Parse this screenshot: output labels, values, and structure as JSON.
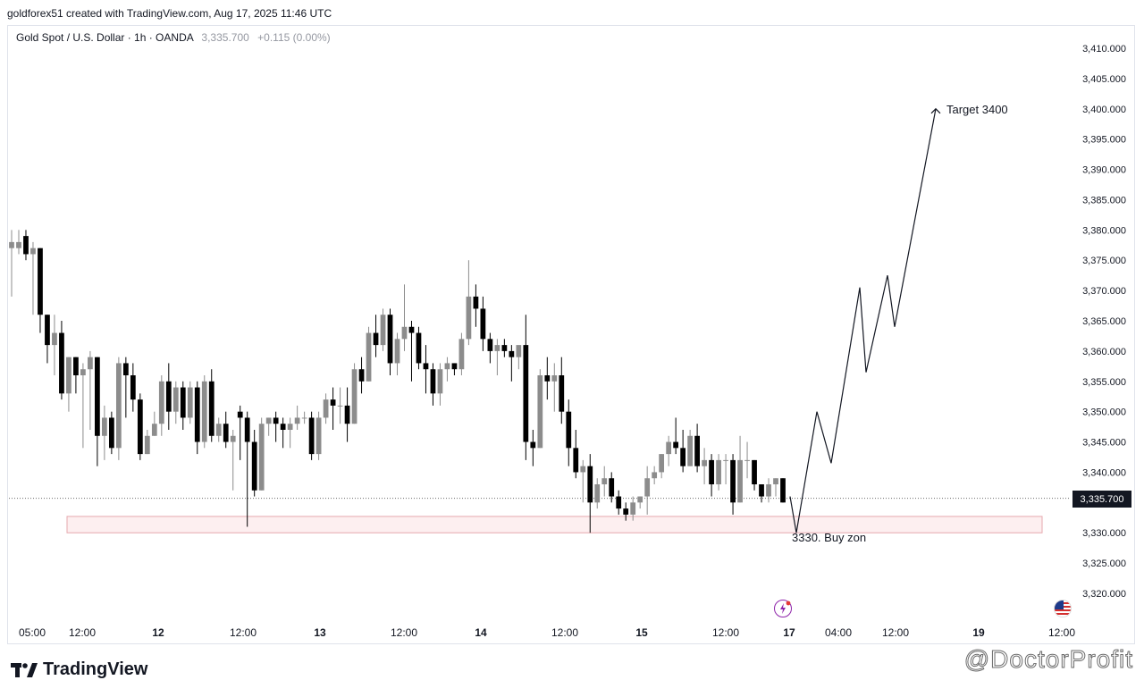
{
  "header": {
    "credit": "goldforex51 created with TradingView.com, Aug 17, 2025 11:46 UTC"
  },
  "legend": {
    "symbol": "Gold Spot / U.S. Dollar · 1h · OANDA",
    "price": "3,335.700",
    "change": "+0.115 (0.00%)"
  },
  "price_tag": "3,335.700",
  "footer": {
    "brand": "TradingView",
    "watermark": "@DoctorProfit"
  },
  "colors": {
    "up": "#8c8c8c",
    "down": "#000000",
    "zone_fill": "#fdeff0",
    "zone_border": "#e6a8ae",
    "line": "#131722"
  },
  "chart_data": {
    "type": "candlestick",
    "symbol": "Gold Spot / U.S. Dollar",
    "interval": "1h",
    "exchange": "OANDA",
    "ylim": [
      3316,
      3416
    ],
    "y_ticks": [
      3410,
      3405,
      3400,
      3395,
      3390,
      3385,
      3380,
      3375,
      3370,
      3365,
      3360,
      3355,
      3350,
      3345,
      3340,
      3335,
      3330,
      3325,
      3320
    ],
    "y_tick_labels": [
      "3,410.000",
      "3,405.000",
      "3,400.000",
      "3,395.000",
      "3,390.000",
      "3,385.000",
      "3,380.000",
      "3,375.000",
      "3,370.000",
      "3,365.000",
      "3,360.000",
      "3,355.000",
      "3,350.000",
      "3,345.000",
      "3,340.000",
      "3,335.000",
      "3,330.000",
      "3,325.000",
      "3,320.000"
    ],
    "x_ticks": [
      "05:00",
      "12:00",
      "12",
      "12:00",
      "13",
      "12:00",
      "14",
      "12:00",
      "15",
      "12:00",
      "17",
      "04:00",
      "12:00",
      "19",
      "12:00"
    ],
    "x_tick_bold": [
      false,
      false,
      true,
      false,
      true,
      false,
      true,
      false,
      true,
      false,
      true,
      false,
      false,
      true,
      false
    ],
    "current_price": 3335.7,
    "candles": [
      {
        "o": 3377,
        "h": 3380,
        "l": 3369,
        "c": 3378
      },
      {
        "o": 3377,
        "h": 3380,
        "l": 3376,
        "c": 3378
      },
      {
        "o": 3379,
        "h": 3380,
        "l": 3375,
        "c": 3376
      },
      {
        "o": 3376,
        "h": 3378,
        "l": 3366,
        "c": 3377
      },
      {
        "o": 3377,
        "h": 3377,
        "l": 3363,
        "c": 3366
      },
      {
        "o": 3366,
        "h": 3366,
        "l": 3358,
        "c": 3361
      },
      {
        "o": 3361,
        "h": 3366,
        "l": 3356,
        "c": 3363
      },
      {
        "o": 3363,
        "h": 3365,
        "l": 3352,
        "c": 3353
      },
      {
        "o": 3353,
        "h": 3359,
        "l": 3350,
        "c": 3359
      },
      {
        "o": 3359,
        "h": 3359,
        "l": 3353,
        "c": 3356
      },
      {
        "o": 3356,
        "h": 3358,
        "l": 3344,
        "c": 3357
      },
      {
        "o": 3357,
        "h": 3360,
        "l": 3347,
        "c": 3359
      },
      {
        "o": 3359,
        "h": 3359,
        "l": 3341,
        "c": 3346
      },
      {
        "o": 3346,
        "h": 3351,
        "l": 3342,
        "c": 3349
      },
      {
        "o": 3349,
        "h": 3350,
        "l": 3343,
        "c": 3344
      },
      {
        "o": 3344,
        "h": 3359,
        "l": 3342,
        "c": 3358
      },
      {
        "o": 3358,
        "h": 3359,
        "l": 3349,
        "c": 3356
      },
      {
        "o": 3356,
        "h": 3358,
        "l": 3350,
        "c": 3352
      },
      {
        "o": 3352,
        "h": 3353,
        "l": 3342,
        "c": 3343
      },
      {
        "o": 3343,
        "h": 3347,
        "l": 3343,
        "c": 3346
      },
      {
        "o": 3346,
        "h": 3350,
        "l": 3346,
        "c": 3348
      },
      {
        "o": 3348,
        "h": 3356,
        "l": 3346,
        "c": 3355
      },
      {
        "o": 3355,
        "h": 3358,
        "l": 3347,
        "c": 3350
      },
      {
        "o": 3350,
        "h": 3355,
        "l": 3348,
        "c": 3354
      },
      {
        "o": 3354,
        "h": 3355,
        "l": 3347,
        "c": 3349
      },
      {
        "o": 3349,
        "h": 3355,
        "l": 3348,
        "c": 3354
      },
      {
        "o": 3354,
        "h": 3355,
        "l": 3343,
        "c": 3345
      },
      {
        "o": 3345,
        "h": 3356,
        "l": 3344,
        "c": 3355
      },
      {
        "o": 3355,
        "h": 3357,
        "l": 3345,
        "c": 3346
      },
      {
        "o": 3346,
        "h": 3349,
        "l": 3345,
        "c": 3348
      },
      {
        "o": 3348,
        "h": 3350,
        "l": 3344,
        "c": 3345
      },
      {
        "o": 3345,
        "h": 3347,
        "l": 3337,
        "c": 3346
      },
      {
        "o": 3350,
        "h": 3351,
        "l": 3342,
        "c": 3349
      },
      {
        "o": 3349,
        "h": 3350,
        "l": 3331,
        "c": 3345
      },
      {
        "o": 3345,
        "h": 3347,
        "l": 3336,
        "c": 3337
      },
      {
        "o": 3337,
        "h": 3349,
        "l": 3337,
        "c": 3348
      },
      {
        "o": 3348,
        "h": 3349,
        "l": 3346,
        "c": 3349
      },
      {
        "o": 3349,
        "h": 3350,
        "l": 3345,
        "c": 3348
      },
      {
        "o": 3348,
        "h": 3349,
        "l": 3344,
        "c": 3347
      },
      {
        "o": 3347,
        "h": 3349,
        "l": 3344,
        "c": 3348
      },
      {
        "o": 3348,
        "h": 3351,
        "l": 3347,
        "c": 3349
      },
      {
        "o": 3349,
        "h": 3350,
        "l": 3348,
        "c": 3349
      },
      {
        "o": 3349,
        "h": 3350,
        "l": 3342,
        "c": 3343
      },
      {
        "o": 3343,
        "h": 3350,
        "l": 3342,
        "c": 3349
      },
      {
        "o": 3349,
        "h": 3353,
        "l": 3348,
        "c": 3352
      },
      {
        "o": 3352,
        "h": 3354,
        "l": 3347,
        "c": 3351
      },
      {
        "o": 3351,
        "h": 3354,
        "l": 3348,
        "c": 3351
      },
      {
        "o": 3351,
        "h": 3354,
        "l": 3345,
        "c": 3348
      },
      {
        "o": 3348,
        "h": 3358,
        "l": 3348,
        "c": 3357
      },
      {
        "o": 3357,
        "h": 3359,
        "l": 3353,
        "c": 3355
      },
      {
        "o": 3355,
        "h": 3364,
        "l": 3355,
        "c": 3363
      },
      {
        "o": 3363,
        "h": 3366,
        "l": 3359,
        "c": 3361
      },
      {
        "o": 3361,
        "h": 3367,
        "l": 3360,
        "c": 3366
      },
      {
        "o": 3366,
        "h": 3367,
        "l": 3356,
        "c": 3358
      },
      {
        "o": 3358,
        "h": 3363,
        "l": 3356,
        "c": 3362
      },
      {
        "o": 3362,
        "h": 3371,
        "l": 3360,
        "c": 3364
      },
      {
        "o": 3364,
        "h": 3365,
        "l": 3355,
        "c": 3363
      },
      {
        "o": 3363,
        "h": 3364,
        "l": 3357,
        "c": 3358
      },
      {
        "o": 3358,
        "h": 3361,
        "l": 3353,
        "c": 3357
      },
      {
        "o": 3357,
        "h": 3358,
        "l": 3351,
        "c": 3353
      },
      {
        "o": 3353,
        "h": 3358,
        "l": 3351,
        "c": 3357
      },
      {
        "o": 3357,
        "h": 3359,
        "l": 3355,
        "c": 3358
      },
      {
        "o": 3358,
        "h": 3358,
        "l": 3356,
        "c": 3357
      },
      {
        "o": 3357,
        "h": 3363,
        "l": 3356,
        "c": 3362
      },
      {
        "o": 3362,
        "h": 3375,
        "l": 3361,
        "c": 3369
      },
      {
        "o": 3369,
        "h": 3371,
        "l": 3364,
        "c": 3367
      },
      {
        "o": 3367,
        "h": 3369,
        "l": 3360,
        "c": 3362
      },
      {
        "o": 3362,
        "h": 3363,
        "l": 3358,
        "c": 3360
      },
      {
        "o": 3360,
        "h": 3362,
        "l": 3356,
        "c": 3361
      },
      {
        "o": 3361,
        "h": 3362,
        "l": 3359,
        "c": 3360
      },
      {
        "o": 3360,
        "h": 3361,
        "l": 3355,
        "c": 3359
      },
      {
        "o": 3359,
        "h": 3360,
        "l": 3357,
        "c": 3361
      },
      {
        "o": 3361,
        "h": 3366,
        "l": 3342,
        "c": 3345
      },
      {
        "o": 3345,
        "h": 3347,
        "l": 3341,
        "c": 3344
      },
      {
        "o": 3344,
        "h": 3357,
        "l": 3344,
        "c": 3356
      },
      {
        "o": 3356,
        "h": 3359,
        "l": 3352,
        "c": 3355
      },
      {
        "o": 3355,
        "h": 3358,
        "l": 3350,
        "c": 3356
      },
      {
        "o": 3356,
        "h": 3359,
        "l": 3348,
        "c": 3350
      },
      {
        "o": 3350,
        "h": 3352,
        "l": 3341,
        "c": 3344
      },
      {
        "o": 3344,
        "h": 3347,
        "l": 3339,
        "c": 3340
      },
      {
        "o": 3340,
        "h": 3342,
        "l": 3335,
        "c": 3341
      },
      {
        "o": 3341,
        "h": 3343,
        "l": 3330,
        "c": 3335
      },
      {
        "o": 3335,
        "h": 3339,
        "l": 3334,
        "c": 3338
      },
      {
        "o": 3338,
        "h": 3341,
        "l": 3336,
        "c": 3339
      },
      {
        "o": 3339,
        "h": 3340,
        "l": 3335,
        "c": 3336
      },
      {
        "o": 3336,
        "h": 3337,
        "l": 3333,
        "c": 3334
      },
      {
        "o": 3334,
        "h": 3335,
        "l": 3332,
        "c": 3333
      },
      {
        "o": 3333,
        "h": 3336,
        "l": 3332,
        "c": 3335
      },
      {
        "o": 3335,
        "h": 3336,
        "l": 3334,
        "c": 3336
      },
      {
        "o": 3336,
        "h": 3341,
        "l": 3333,
        "c": 3339
      },
      {
        "o": 3339,
        "h": 3341,
        "l": 3338,
        "c": 3340
      },
      {
        "o": 3340,
        "h": 3343,
        "l": 3339,
        "c": 3343
      },
      {
        "o": 3343,
        "h": 3346,
        "l": 3341,
        "c": 3345
      },
      {
        "o": 3345,
        "h": 3349,
        "l": 3343,
        "c": 3344
      },
      {
        "o": 3344,
        "h": 3347,
        "l": 3340,
        "c": 3341
      },
      {
        "o": 3341,
        "h": 3347,
        "l": 3341,
        "c": 3346
      },
      {
        "o": 3346,
        "h": 3348,
        "l": 3340,
        "c": 3341
      },
      {
        "o": 3341,
        "h": 3344,
        "l": 3338,
        "c": 3342
      },
      {
        "o": 3342,
        "h": 3343,
        "l": 3336,
        "c": 3338
      },
      {
        "o": 3338,
        "h": 3343,
        "l": 3337,
        "c": 3342
      },
      {
        "o": 3342,
        "h": 3343,
        "l": 3338,
        "c": 3342
      },
      {
        "o": 3342,
        "h": 3343,
        "l": 3333,
        "c": 3335
      },
      {
        "o": 3335,
        "h": 3346,
        "l": 3335,
        "c": 3342
      },
      {
        "o": 3342,
        "h": 3345,
        "l": 3339,
        "c": 3342
      },
      {
        "o": 3342,
        "h": 3342,
        "l": 3337,
        "c": 3338
      },
      {
        "o": 3338,
        "h": 3338,
        "l": 3335,
        "c": 3336
      },
      {
        "o": 3336,
        "h": 3339,
        "l": 3335,
        "c": 3338
      },
      {
        "o": 3338,
        "h": 3339,
        "l": 3336,
        "c": 3339
      },
      {
        "o": 3339,
        "h": 3339,
        "l": 3335,
        "c": 3335
      }
    ],
    "buy_zone": {
      "from": 3330.0,
      "to": 3332.7,
      "label": "3330. Buy zon"
    },
    "projection": [
      3336.0,
      3330.0,
      3350.0,
      3341.5,
      3370.5,
      3356.5,
      3372.5,
      3364.0,
      3400.0
    ],
    "target": {
      "price": 3400,
      "label": "Target 3400"
    }
  }
}
